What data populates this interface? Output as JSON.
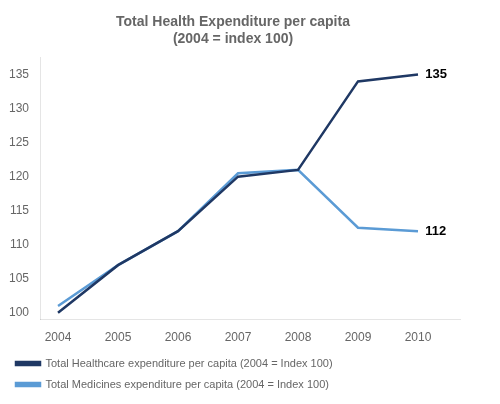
{
  "chart_data": {
    "type": "line",
    "title": "Total Health Expenditure per capita\n(2004 = index 100)",
    "x": [
      2004,
      2005,
      2006,
      2007,
      2008,
      2009,
      2010
    ],
    "series": [
      {
        "name": "Total Healthcare expenditure per capita (2004 = Index 100)",
        "color": "#1F3864",
        "marker": "none",
        "values": [
          100,
          107,
          112,
          120,
          121,
          134,
          135
        ]
      },
      {
        "name": "Total Medicines expenditure per capita (2004 = Index 100)",
        "color": "#5B9BD5",
        "marker": "none",
        "values": [
          101,
          107,
          112,
          120.5,
          121,
          112.5,
          112
        ]
      }
    ],
    "xlim": [
      2003.7,
      2010.7
    ],
    "xticks": [
      2004,
      2005,
      2006,
      2007,
      2008,
      2009,
      2010
    ],
    "ylim": [
      99.0,
      137.5
    ],
    "yticks": [
      100,
      105,
      110,
      115,
      120,
      125,
      130,
      135
    ],
    "annotations": [
      {
        "text": "135",
        "x": 2010.12,
        "y": 135
      },
      {
        "text": "112",
        "x": 2010.12,
        "y": 112
      }
    ],
    "grid": false,
    "legend": "bottom"
  }
}
